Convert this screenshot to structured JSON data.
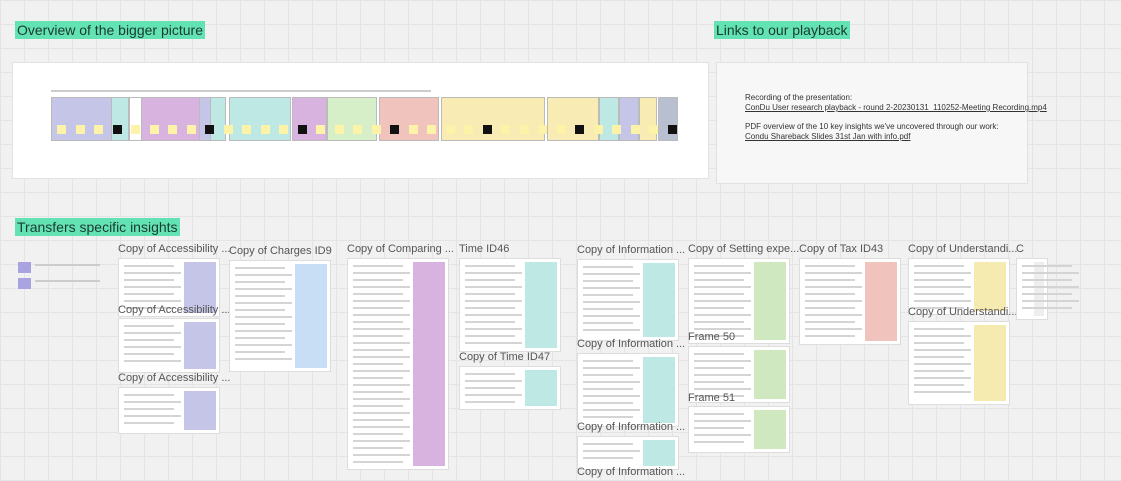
{
  "sections": {
    "overview": "Overview of the bigger picture",
    "links": "Links to our playback",
    "transfers": "Transfers specific insights"
  },
  "links": {
    "recording_label": "Recording of the presentation:",
    "recording_link": "ConDu User research playback - round 2-20230131_110252-Meeting Recording.mp4",
    "pdf_label": "PDF overview of the 10 key insights we've uncovered through our work:",
    "pdf_link": "Condu Shareback Slides 31st Jan with info.pdf"
  },
  "frames": [
    {
      "title": "Copy of Accessibility ..."
    },
    {
      "title": "Copy of Accessibility ..."
    },
    {
      "title": "Copy of Accessibility ..."
    },
    {
      "title": "Copy of Charges ID9"
    },
    {
      "title": "Copy of Comparing ..."
    },
    {
      "title": "Time ID46"
    },
    {
      "title": "Copy of Time ID47"
    },
    {
      "title": "Copy of Information ..."
    },
    {
      "title": "Copy of Information ..."
    },
    {
      "title": "Copy of Information ..."
    },
    {
      "title": "Copy of Information ..."
    },
    {
      "title": "Copy of Setting expe..."
    },
    {
      "title": "Frame 50"
    },
    {
      "title": "Frame 51"
    },
    {
      "title": "Copy of Tax ID43"
    },
    {
      "title": "Copy of Understandi..."
    },
    {
      "title": "Copy of Understandi..."
    },
    {
      "title": "C"
    }
  ]
}
